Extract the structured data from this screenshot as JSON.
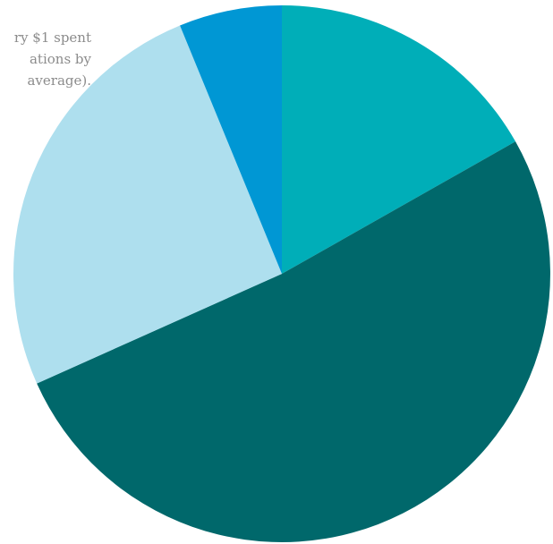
{
  "caption": "ry $1 spent\nations by\naverage).",
  "chart_data": {
    "type": "pie",
    "title": "",
    "slices": [
      {
        "value": 16.8,
        "color": "#00aeb8"
      },
      {
        "value": 51.5,
        "color": "#00686b"
      },
      {
        "value": 25.5,
        "color": "#aedfee"
      },
      {
        "value": 6.2,
        "color": "#0097d4"
      }
    ],
    "start_angle_deg": 0,
    "direction": "clockwise",
    "legend": "none"
  }
}
